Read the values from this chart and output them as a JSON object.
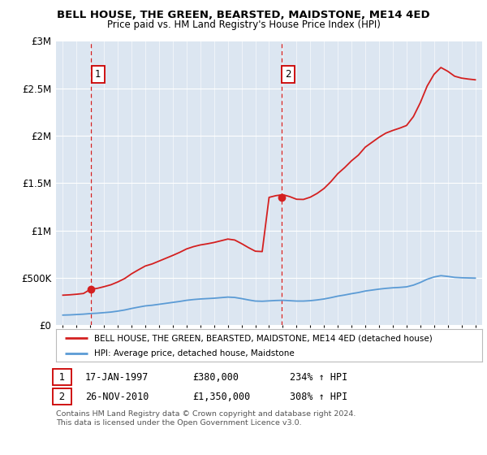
{
  "title": "BELL HOUSE, THE GREEN, BEARSTED, MAIDSTONE, ME14 4ED",
  "subtitle": "Price paid vs. HM Land Registry's House Price Index (HPI)",
  "ylim": [
    0,
    3000000
  ],
  "yticks": [
    0,
    500000,
    1000000,
    1500000,
    2000000,
    2500000,
    3000000
  ],
  "ytick_labels": [
    "£0",
    "£500K",
    "£1M",
    "£1.5M",
    "£2M",
    "£2.5M",
    "£3M"
  ],
  "sale1_year": 1997.05,
  "sale1_price": 380000,
  "sale1_date": "17-JAN-1997",
  "sale1_hpi": "234%",
  "sale2_year": 2010.9,
  "sale2_price": 1350000,
  "sale2_date": "26-NOV-2010",
  "sale2_hpi": "308%",
  "line_color_red": "#d42020",
  "line_color_blue": "#5b9bd5",
  "plot_bg": "#dce6f1",
  "legend_line1": "BELL HOUSE, THE GREEN, BEARSTED, MAIDSTONE, ME14 4ED (detached house)",
  "legend_line2": "HPI: Average price, detached house, Maidstone",
  "footnote": "Contains HM Land Registry data © Crown copyright and database right 2024.\nThis data is licensed under the Open Government Licence v3.0.",
  "hpi_years": [
    1995,
    1995.5,
    1996,
    1996.5,
    1997,
    1997.5,
    1998,
    1998.5,
    1999,
    1999.5,
    2000,
    2000.5,
    2001,
    2001.5,
    2002,
    2002.5,
    2003,
    2003.5,
    2004,
    2004.5,
    2005,
    2005.5,
    2006,
    2006.5,
    2007,
    2007.5,
    2008,
    2008.5,
    2009,
    2009.5,
    2010,
    2010.5,
    2011,
    2011.5,
    2012,
    2012.5,
    2013,
    2013.5,
    2014,
    2014.5,
    2015,
    2015.5,
    2016,
    2016.5,
    2017,
    2017.5,
    2018,
    2018.5,
    2019,
    2019.5,
    2020,
    2020.5,
    2021,
    2021.5,
    2022,
    2022.5,
    2023,
    2023.5,
    2024,
    2024.5,
    2025
  ],
  "hpi_values": [
    108000,
    110000,
    114000,
    118000,
    124000,
    128000,
    134000,
    140000,
    150000,
    162000,
    178000,
    192000,
    205000,
    212000,
    222000,
    232000,
    242000,
    252000,
    264000,
    272000,
    278000,
    282000,
    286000,
    292000,
    298000,
    294000,
    282000,
    268000,
    256000,
    254000,
    258000,
    262000,
    264000,
    260000,
    256000,
    256000,
    260000,
    268000,
    278000,
    292000,
    308000,
    320000,
    334000,
    346000,
    362000,
    372000,
    382000,
    390000,
    396000,
    400000,
    406000,
    424000,
    452000,
    486000,
    510000,
    524000,
    516000,
    506000,
    502000,
    500000,
    498000
  ],
  "red_years": [
    1995,
    1995.5,
    1996,
    1996.5,
    1997,
    1997.5,
    1998,
    1998.5,
    1999,
    1999.5,
    2000,
    2000.5,
    2001,
    2001.5,
    2002,
    2002.5,
    2003,
    2003.5,
    2004,
    2004.5,
    2005,
    2005.5,
    2006,
    2006.5,
    2007,
    2007.5,
    2008,
    2008.5,
    2009,
    2009.5,
    2010,
    2010.5,
    2011,
    2011.5,
    2012,
    2012.5,
    2013,
    2013.5,
    2014,
    2014.5,
    2015,
    2015.5,
    2016,
    2016.5,
    2017,
    2017.5,
    2018,
    2018.5,
    2019,
    2019.5,
    2020,
    2020.5,
    2021,
    2021.5,
    2022,
    2022.5,
    2023,
    2023.5,
    2024,
    2024.5,
    2025
  ],
  "red_values": [
    318000,
    322000,
    328000,
    336000,
    380000,
    390000,
    408000,
    428000,
    458000,
    494000,
    544000,
    586000,
    626000,
    648000,
    678000,
    708000,
    738000,
    770000,
    806000,
    830000,
    848000,
    860000,
    874000,
    892000,
    910000,
    900000,
    862000,
    820000,
    782000,
    778000,
    1350000,
    1368000,
    1378000,
    1358000,
    1330000,
    1328000,
    1352000,
    1392000,
    1444000,
    1516000,
    1600000,
    1664000,
    1736000,
    1796000,
    1880000,
    1932000,
    1984000,
    2028000,
    2056000,
    2080000,
    2108000,
    2202000,
    2348000,
    2524000,
    2648000,
    2720000,
    2680000,
    2628000,
    2608000,
    2598000,
    2590000
  ]
}
